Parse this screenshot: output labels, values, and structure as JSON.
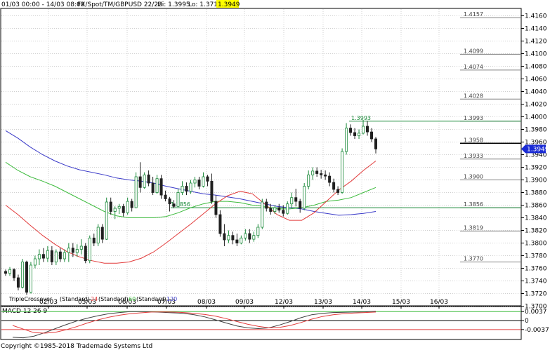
{
  "header": {
    "range": "01/03 00:00 - 14/03 08:00",
    "instrument": "FX/Spot/TM/GBPUSD 22/22",
    "hi": "Hi: 1.3995",
    "lo": "Lo: 1.3715",
    "last": "1.3949"
  },
  "footer": "Copyright ©1985-2018 Trademade Systems Ltd",
  "colors": {
    "up": "#1b8a3a",
    "down": "#202020",
    "ma24": "#e23b3b",
    "ma60": "#3dbb3d",
    "ma120": "#3a3ac8",
    "grid": "#d0d0d0",
    "level": "#808080",
    "last_bg": "#1a2bd4"
  },
  "chart_data": [
    {
      "type": "candlestick",
      "title": "",
      "x_ticks": [
        "02/03",
        "05/03",
        "06/03",
        "07/03",
        "08/03",
        "09/03",
        "12/03",
        "13/03",
        "14/03",
        "15/03",
        "16/03"
      ],
      "ylim": [
        1.37,
        1.417
      ],
      "y_ticks": [
        "1.4160",
        "1.4140",
        "1.4120",
        "1.4100",
        "1.4080",
        "1.4060",
        "1.4040",
        "1.4020",
        "1.4000",
        "1.3980",
        "1.3960",
        "1.3940",
        "1.3920",
        "1.3900",
        "1.3880",
        "1.3860",
        "1.3840",
        "1.3820",
        "1.3800",
        "1.3780",
        "1.3760",
        "1.3740",
        "1.3720",
        "1.3700"
      ],
      "levels": [
        "1.4157",
        "1.4099",
        "1.4074",
        "1.4028",
        "1.3993",
        "1.3958",
        "1.3933",
        "1.3900",
        "1.3856",
        "1.3819",
        "1.3770"
      ],
      "annotations": [
        {
          "text": "1.3993",
          "price": 1.3993
        },
        {
          "text": "1.3856",
          "price": 1.3856
        }
      ],
      "last_price": "1.3949",
      "legend": {
        "title": "TripleCrossover",
        "items": [
          {
            "label": "(Standard)",
            "period": "24",
            "color": "#e23b3b"
          },
          {
            "label": "(Standard)",
            "period": "60",
            "color": "#3dbb3d"
          },
          {
            "label": "(Standard)",
            "period": "120",
            "color": "#3a3ac8"
          }
        ]
      },
      "candles": [
        [
          1.3755,
          1.3758,
          1.3748,
          1.3752
        ],
        [
          1.3752,
          1.3762,
          1.3748,
          1.3758
        ],
        [
          1.3758,
          1.376,
          1.374,
          1.3745
        ],
        [
          1.3745,
          1.375,
          1.3725,
          1.373
        ],
        [
          1.373,
          1.3775,
          1.3728,
          1.377
        ],
        [
          1.377,
          1.3772,
          1.3718,
          1.3722
        ],
        [
          1.3722,
          1.377,
          1.372,
          1.3765
        ],
        [
          1.3765,
          1.378,
          1.376,
          1.3775
        ],
        [
          1.3775,
          1.379,
          1.3765,
          1.3782
        ],
        [
          1.3782,
          1.3792,
          1.377,
          1.3776
        ],
        [
          1.3776,
          1.3795,
          1.377,
          1.3788
        ],
        [
          1.3788,
          1.3795,
          1.3765,
          1.377
        ],
        [
          1.377,
          1.379,
          1.3765,
          1.3786
        ],
        [
          1.3786,
          1.3792,
          1.377,
          1.3775
        ],
        [
          1.3775,
          1.379,
          1.377,
          1.3785
        ],
        [
          1.3785,
          1.38,
          1.377,
          1.3792
        ],
        [
          1.3792,
          1.38,
          1.3778,
          1.3785
        ],
        [
          1.3785,
          1.3798,
          1.3778,
          1.379
        ],
        [
          1.379,
          1.3806,
          1.3782,
          1.3795
        ],
        [
          1.3795,
          1.38,
          1.3768,
          1.3772
        ],
        [
          1.3772,
          1.3812,
          1.3768,
          1.3808
        ],
        [
          1.3808,
          1.3815,
          1.3795,
          1.38
        ],
        [
          1.38,
          1.383,
          1.3795,
          1.3825
        ],
        [
          1.3825,
          1.383,
          1.38,
          1.3806
        ],
        [
          1.3806,
          1.3872,
          1.3805,
          1.3865
        ],
        [
          1.3865,
          1.3872,
          1.3845,
          1.385
        ],
        [
          1.385,
          1.3858,
          1.3838,
          1.3855
        ],
        [
          1.3855,
          1.3862,
          1.3846,
          1.3858
        ],
        [
          1.3858,
          1.3862,
          1.3842,
          1.3848
        ],
        [
          1.3848,
          1.3872,
          1.3845,
          1.3866
        ],
        [
          1.3866,
          1.387,
          1.385,
          1.3856
        ],
        [
          1.3856,
          1.3912,
          1.3855,
          1.3905
        ],
        [
          1.3905,
          1.3928,
          1.388,
          1.3888
        ],
        [
          1.3888,
          1.3912,
          1.3886,
          1.3908
        ],
        [
          1.3908,
          1.3915,
          1.389,
          1.3895
        ],
        [
          1.3895,
          1.3905,
          1.3876,
          1.388
        ],
        [
          1.388,
          1.3908,
          1.3878,
          1.3902
        ],
        [
          1.3902,
          1.3908,
          1.387,
          1.3876
        ],
        [
          1.3876,
          1.3883,
          1.3866,
          1.387
        ],
        [
          1.387,
          1.3873,
          1.385,
          1.3862
        ],
        [
          1.3862,
          1.3868,
          1.3855,
          1.3858
        ],
        [
          1.3858,
          1.3886,
          1.3857,
          1.388
        ],
        [
          1.388,
          1.3898,
          1.3876,
          1.389
        ],
        [
          1.389,
          1.3896,
          1.3876,
          1.3882
        ],
        [
          1.3882,
          1.39,
          1.3878,
          1.3895
        ],
        [
          1.3895,
          1.3905,
          1.3888,
          1.39
        ],
        [
          1.39,
          1.3905,
          1.3885,
          1.389
        ],
        [
          1.389,
          1.3912,
          1.3888,
          1.3905
        ],
        [
          1.3905,
          1.3908,
          1.389,
          1.3898
        ],
        [
          1.3898,
          1.391,
          1.3862,
          1.3866
        ],
        [
          1.3866,
          1.3876,
          1.384,
          1.3845
        ],
        [
          1.3845,
          1.3852,
          1.381,
          1.3815
        ],
        [
          1.3815,
          1.383,
          1.3795,
          1.3805
        ],
        [
          1.3805,
          1.382,
          1.38,
          1.3812
        ],
        [
          1.3812,
          1.3818,
          1.3798,
          1.3805
        ],
        [
          1.3805,
          1.3815,
          1.3795,
          1.38
        ],
        [
          1.38,
          1.3812,
          1.3798,
          1.3808
        ],
        [
          1.3808,
          1.3822,
          1.3804,
          1.3815
        ],
        [
          1.3815,
          1.3822,
          1.38,
          1.3806
        ],
        [
          1.3806,
          1.3818,
          1.3802,
          1.3812
        ],
        [
          1.3812,
          1.383,
          1.3808,
          1.3825
        ],
        [
          1.3825,
          1.387,
          1.3822,
          1.3865
        ],
        [
          1.3865,
          1.387,
          1.385,
          1.3855
        ],
        [
          1.3855,
          1.3862,
          1.3845,
          1.385
        ],
        [
          1.385,
          1.386,
          1.3846,
          1.3856
        ],
        [
          1.3856,
          1.3862,
          1.3848,
          1.3852
        ],
        [
          1.3852,
          1.386,
          1.3842,
          1.3847
        ],
        [
          1.3847,
          1.3866,
          1.3845,
          1.3862
        ],
        [
          1.3862,
          1.388,
          1.3856,
          1.3872
        ],
        [
          1.3872,
          1.3886,
          1.3858,
          1.3866
        ],
        [
          1.3866,
          1.387,
          1.3848,
          1.3855
        ],
        [
          1.3855,
          1.3895,
          1.3852,
          1.389
        ],
        [
          1.389,
          1.3915,
          1.3885,
          1.3908
        ],
        [
          1.3908,
          1.392,
          1.39,
          1.3914
        ],
        [
          1.3914,
          1.392,
          1.3905,
          1.391
        ],
        [
          1.391,
          1.3916,
          1.3902,
          1.3908
        ],
        [
          1.3908,
          1.3915,
          1.39,
          1.3906
        ],
        [
          1.3906,
          1.3912,
          1.389,
          1.3896
        ],
        [
          1.3896,
          1.3902,
          1.388,
          1.3885
        ],
        [
          1.3885,
          1.389,
          1.3876,
          1.388
        ],
        [
          1.388,
          1.395,
          1.3878,
          1.3945
        ],
        [
          1.3945,
          1.399,
          1.394,
          1.3982
        ],
        [
          1.3982,
          1.3988,
          1.397,
          1.3975
        ],
        [
          1.3975,
          1.3982,
          1.3965,
          1.397
        ],
        [
          1.397,
          1.398,
          1.3965,
          1.3974
        ],
        [
          1.3974,
          1.3995,
          1.3972,
          1.3985
        ],
        [
          1.3985,
          1.3993,
          1.397,
          1.3976
        ],
        [
          1.3976,
          1.3982,
          1.396,
          1.3965
        ],
        [
          1.3965,
          1.3968,
          1.3942,
          1.3949
        ]
      ],
      "ma24": [
        1.386,
        1.3845,
        1.3828,
        1.3812,
        1.3798,
        1.3786,
        1.3778,
        1.3772,
        1.3768,
        1.3768,
        1.377,
        1.3776,
        1.3786,
        1.38,
        1.3815,
        1.383,
        1.3846,
        1.3862,
        1.3875,
        1.3882,
        1.3878,
        1.3862,
        1.3845,
        1.3836,
        1.3836,
        1.3848,
        1.3866,
        1.3884,
        1.3898,
        1.3915,
        1.393
      ],
      "ma60": [
        1.3928,
        1.3915,
        1.3905,
        1.3898,
        1.389,
        1.388,
        1.387,
        1.386,
        1.385,
        1.3843,
        1.384,
        1.384,
        1.384,
        1.3842,
        1.3848,
        1.3856,
        1.3862,
        1.3866,
        1.3866,
        1.3864,
        1.386,
        1.3858,
        1.3854,
        1.3854,
        1.3856,
        1.386,
        1.3866,
        1.3868,
        1.3872,
        1.388,
        1.3888
      ],
      "ma120": [
        1.3978,
        1.3966,
        1.3952,
        1.394,
        1.393,
        1.3922,
        1.3916,
        1.3912,
        1.3908,
        1.3903,
        1.39,
        1.3898,
        1.3895,
        1.389,
        1.3886,
        1.3882,
        1.3878,
        1.3876,
        1.3873,
        1.387,
        1.3866,
        1.3862,
        1.3858,
        1.3856,
        1.3854,
        1.385,
        1.3847,
        1.3844,
        1.3845,
        1.3847,
        1.385
      ]
    },
    {
      "type": "line",
      "title": "MACD 12 26 9",
      "ylim": [
        -0.0075,
        0.0055
      ],
      "y_ticks": [
        "0.0037",
        "0",
        "-0.0037"
      ],
      "series": [
        {
          "values": [
            -0.0069,
            -0.0071,
            -0.0064,
            -0.005,
            -0.0033,
            -0.0017,
            -0.0002,
            0.001,
            0.002,
            0.0028,
            0.0033,
            0.0037,
            0.0037,
            0.0036,
            0.0034,
            0.0032,
            0.003,
            0.0024,
            0.0015,
            0.0003,
            -0.001,
            -0.0022,
            -0.003,
            -0.0033,
            -0.003,
            -0.0018,
            -0.0004,
            0.0012,
            0.0024,
            0.003,
            0.0033,
            0.0034,
            0.0035,
            0.0036,
            0.0038
          ]
        },
        {
          "values": [
            -0.002,
            -0.0035,
            -0.005,
            -0.0052,
            -0.0048,
            -0.0038,
            -0.0025,
            -0.001,
            0.0003,
            0.0014,
            0.0022,
            0.0028,
            0.0032,
            0.0035,
            0.0036,
            0.0035,
            0.0033,
            0.003,
            0.0025,
            0.0018,
            0.0008,
            -0.0004,
            -0.0015,
            -0.0024,
            -0.003,
            -0.0028,
            -0.002,
            -0.0008,
            0.0006,
            0.0017,
            0.0024,
            0.0028,
            0.0031,
            0.0033,
            0.0035
          ]
        }
      ]
    }
  ]
}
